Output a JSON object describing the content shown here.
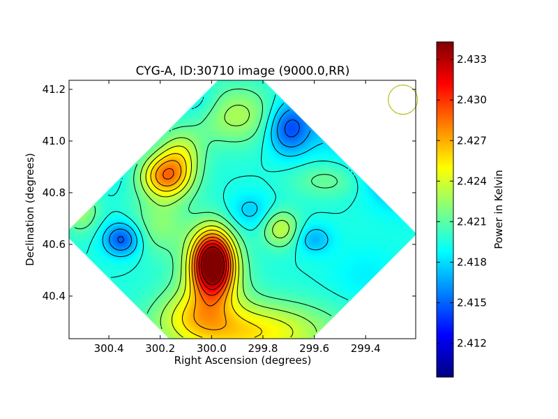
{
  "chart_data": {
    "type": "heatmap",
    "title": "CYG-A, ID:30710 image (9000.0,RR)",
    "xlabel": "Right Ascension (degrees)",
    "ylabel": "Declination (degrees)",
    "xlim": [
      300.555,
      299.205
    ],
    "ylim": [
      40.235,
      41.235
    ],
    "x_ticks": [
      300.4,
      300.2,
      300.0,
      299.8,
      299.6,
      299.4
    ],
    "x_tick_labels": [
      "300.4",
      "300.2",
      "300.0",
      "299.8",
      "299.6",
      "299.4"
    ],
    "y_ticks": [
      40.4,
      40.6,
      40.8,
      41.0,
      41.2
    ],
    "y_tick_labels": [
      "40.4",
      "40.6",
      "40.8",
      "41.0",
      "41.2"
    ],
    "colorbar": {
      "label": "Power in Kelvin",
      "range": [
        2.4095,
        2.4343
      ],
      "ticks": [
        2.412,
        2.415,
        2.418,
        2.421,
        2.424,
        2.427,
        2.43,
        2.433
      ],
      "tick_labels": [
        "2.412",
        "2.415",
        "2.418",
        "2.421",
        "2.424",
        "2.427",
        "2.430",
        "2.433"
      ],
      "colormap": "jet"
    },
    "baseline": 2.4195,
    "features": [
      {
        "ra": 299.995,
        "dec": 40.53,
        "amp": 0.0145,
        "sra": 0.055,
        "sdec": 0.085
      },
      {
        "ra": 300.0,
        "dec": 40.46,
        "amp": 0.004,
        "sra": 0.09,
        "sdec": 0.12
      },
      {
        "ra": 300.175,
        "dec": 40.865,
        "amp": 0.0085,
        "sra": 0.07,
        "sdec": 0.06
      },
      {
        "ra": 300.12,
        "dec": 40.96,
        "amp": 0.0035,
        "sra": 0.06,
        "sdec": 0.06
      },
      {
        "ra": 299.85,
        "dec": 40.26,
        "amp": 0.006,
        "sra": 0.22,
        "sdec": 0.08
      },
      {
        "ra": 300.08,
        "dec": 40.33,
        "amp": 0.003,
        "sra": 0.1,
        "sdec": 0.07
      },
      {
        "ra": 299.73,
        "dec": 40.66,
        "amp": 0.004,
        "sra": 0.05,
        "sdec": 0.05
      },
      {
        "ra": 299.9,
        "dec": 41.1,
        "amp": 0.0035,
        "sra": 0.12,
        "sdec": 0.08
      },
      {
        "ra": 300.51,
        "dec": 40.73,
        "amp": 0.003,
        "sra": 0.05,
        "sdec": 0.06
      },
      {
        "ra": 300.2,
        "dec": 40.68,
        "amp": 0.0025,
        "sra": 0.08,
        "sdec": 0.08
      },
      {
        "ra": 299.55,
        "dec": 40.85,
        "amp": 0.002,
        "sra": 0.1,
        "sdec": 0.05
      },
      {
        "ra": 300.35,
        "dec": 40.62,
        "amp": -0.005,
        "sra": 0.05,
        "sdec": 0.045
      },
      {
        "ra": 299.7,
        "dec": 41.05,
        "amp": -0.005,
        "sra": 0.06,
        "sdec": 0.07
      },
      {
        "ra": 299.24,
        "dec": 40.92,
        "amp": -0.007,
        "sra": 0.1,
        "sdec": 0.1
      },
      {
        "ra": 299.45,
        "dec": 41.12,
        "amp": -0.003,
        "sra": 0.15,
        "sdec": 0.12
      },
      {
        "ra": 299.6,
        "dec": 40.62,
        "amp": -0.0025,
        "sra": 0.05,
        "sdec": 0.04
      },
      {
        "ra": 299.85,
        "dec": 40.73,
        "amp": -0.002,
        "sra": 0.06,
        "sdec": 0.05
      },
      {
        "ra": 300.45,
        "dec": 40.95,
        "amp": -0.002,
        "sra": 0.08,
        "sdec": 0.08
      },
      {
        "ra": 300.05,
        "dec": 41.15,
        "amp": -0.0015,
        "sra": 0.06,
        "sdec": 0.05
      },
      {
        "ra": 299.4,
        "dec": 40.48,
        "amp": -0.001,
        "sra": 0.1,
        "sdec": 0.08
      }
    ],
    "beam_marker": {
      "ra": 299.255,
      "dec": 41.16,
      "color": "#bcbc1f"
    },
    "frame_color": "#000000",
    "grid": false,
    "legend": "none"
  }
}
